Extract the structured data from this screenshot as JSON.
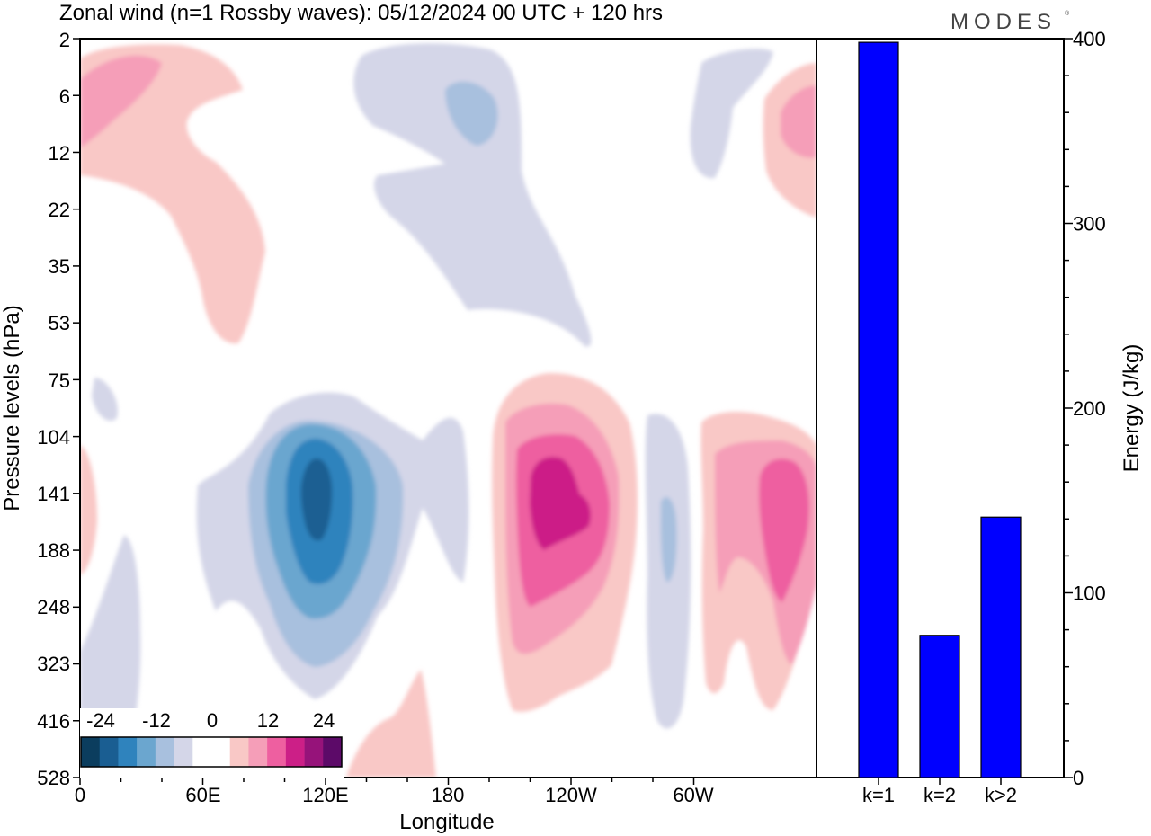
{
  "title": "Zonal wind (n=1 Rossby waves):  05/12/2024  00 UTC  + 120 hrs",
  "logo": "MODES",
  "colors": {
    "neg": [
      "#0b3d5e",
      "#1a5e92",
      "#2f83bd",
      "#6ba6cf",
      "#a8c0de",
      "#d4d6e8"
    ],
    "zero": "#ffffff",
    "pos": [
      "#f9c8c6",
      "#f59eb8",
      "#ee5fa0",
      "#cc1f87",
      "#96137a",
      "#5c0a68"
    ],
    "bar": "#0000ff"
  },
  "chart_data": [
    {
      "type": "heatmap",
      "ylabel": "Pressure levels (hPa)",
      "xlabel": "Longitude",
      "x_ticks": [
        "0",
        "60E",
        "120E",
        "180",
        "120W",
        "60W"
      ],
      "x_tick_lon": [
        0,
        60,
        120,
        180,
        240,
        300
      ],
      "xlim": [
        0,
        360
      ],
      "y_ticks": [
        "2",
        "6",
        "12",
        "22",
        "35",
        "53",
        "75",
        "104",
        "141",
        "188",
        "248",
        "323",
        "416",
        "528"
      ],
      "colorbar_labels": [
        "-24",
        "-12",
        "0",
        "12",
        "24"
      ],
      "colorbar_values": [
        -24,
        -12,
        0,
        12,
        24
      ],
      "contour_levels": [
        -30,
        -24,
        -18,
        -12,
        -6,
        -3,
        3,
        6,
        12,
        18,
        24,
        30
      ],
      "features": [
        {
          "sign": "negative",
          "lon": 115,
          "level_index": 8.5,
          "peak": -26
        },
        {
          "sign": "positive",
          "lon": 240,
          "level_index": 8.5,
          "peak": 20
        },
        {
          "sign": "positive",
          "lon": 335,
          "level_index": 8.8,
          "peak": 13
        },
        {
          "sign": "negative",
          "lon": 290,
          "level_index": 9.0,
          "peak": -6
        },
        {
          "sign": "negative",
          "lon": 185,
          "level_index": 3.2,
          "peak": -6
        },
        {
          "sign": "negative",
          "lon": 325,
          "level_index": 1.7,
          "peak": -3
        },
        {
          "sign": "positive",
          "lon": 40,
          "level_index": 2.2,
          "peak": 8
        },
        {
          "sign": "positive",
          "lon": 350,
          "level_index": 2.0,
          "peak": 9
        },
        {
          "sign": "positive",
          "lon": 150,
          "level_index": 12.4,
          "peak": 4
        }
      ]
    },
    {
      "type": "bar",
      "categories": [
        "k=1",
        "k=2",
        "k>2"
      ],
      "values": [
        398,
        77,
        141
      ],
      "ylabel": "Energy (J/kg)",
      "ylim": [
        0,
        400
      ],
      "y_ticks": [
        0,
        100,
        200,
        300,
        400
      ]
    }
  ]
}
